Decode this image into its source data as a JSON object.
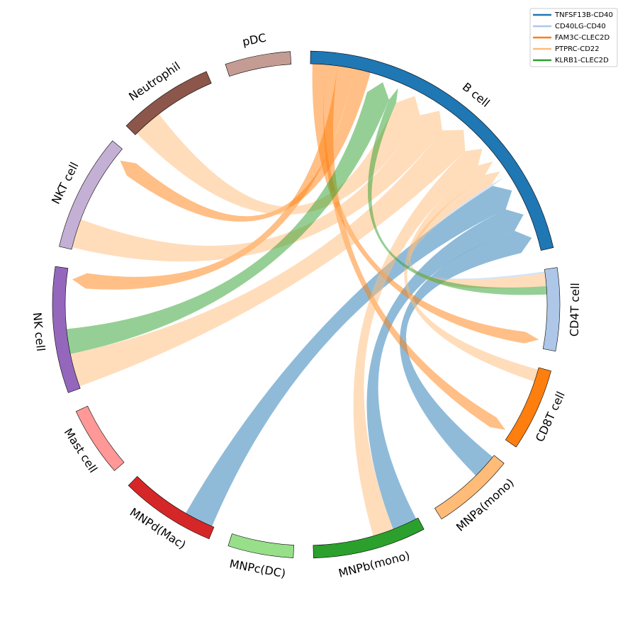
{
  "chart_data": {
    "type": "chord",
    "nodes": [
      {
        "name": "B cell",
        "color": "#1f77b4",
        "value": 76
      },
      {
        "name": "CD4T cell",
        "color": "#aec7e8",
        "value": 19
      },
      {
        "name": "CD8T cell",
        "color": "#ff7f0e",
        "value": 19
      },
      {
        "name": "MNPa(mono)",
        "color": "#ffbb78",
        "value": 19
      },
      {
        "name": "MNPb(mono)",
        "color": "#2ca02c",
        "value": 26
      },
      {
        "name": "MNPc(DC)",
        "color": "#98df8a",
        "value": 15
      },
      {
        "name": "MNPd(Mac)",
        "color": "#d62728",
        "value": 22
      },
      {
        "name": "Mast cell",
        "color": "#ff9896",
        "value": 16
      },
      {
        "name": "NK cell",
        "color": "#9467bd",
        "value": 29
      },
      {
        "name": "NKT cell",
        "color": "#c5b0d5",
        "value": 27
      },
      {
        "name": "Neutrophil",
        "color": "#8c564b",
        "value": 22
      },
      {
        "name": "pDC",
        "color": "#c49c94",
        "value": 15
      }
    ],
    "series": [
      {
        "name": "TNFSF13B-CD40",
        "color": "#1f77b4",
        "links": [
          {
            "source": "MNPa(mono)",
            "target": "B cell",
            "value": 6
          },
          {
            "source": "MNPb(mono)",
            "target": "B cell",
            "value": 6
          },
          {
            "source": "MNPd(Mac)",
            "target": "B cell",
            "value": 7
          }
        ]
      },
      {
        "name": "CD40LG-CD40",
        "color": "#aec7e8",
        "links": [
          {
            "source": "CD4T cell",
            "target": "B cell",
            "value": 0.5
          }
        ]
      },
      {
        "name": "FAM3C-CLEC2D",
        "color": "#ff7f0e",
        "links": [
          {
            "source": "B cell",
            "target": "CD4T cell",
            "value": 3
          },
          {
            "source": "B cell",
            "target": "CD8T cell",
            "value": 3
          },
          {
            "source": "B cell",
            "target": "NK cell",
            "value": 4
          },
          {
            "source": "B cell",
            "target": "NKT cell",
            "value": 4
          }
        ]
      },
      {
        "name": "PTPRC-CD22",
        "color": "#ffbb78",
        "links": [
          {
            "source": "CD4T cell",
            "target": "B cell",
            "value": 3
          },
          {
            "source": "CD8T cell",
            "target": "B cell",
            "value": 3
          },
          {
            "source": "MNPb(mono)",
            "target": "B cell",
            "value": 5
          },
          {
            "source": "NK cell",
            "target": "B cell",
            "value": 8
          },
          {
            "source": "NKT cell",
            "target": "B cell",
            "value": 7
          },
          {
            "source": "Neutrophil",
            "target": "B cell",
            "value": 7
          }
        ]
      },
      {
        "name": "KLRB1-CLEC2D",
        "color": "#2ca02c",
        "links": [
          {
            "source": "CD4T cell",
            "target": "B cell",
            "value": 2
          },
          {
            "source": "NK cell",
            "target": "B cell",
            "value": 6
          }
        ]
      }
    ]
  }
}
